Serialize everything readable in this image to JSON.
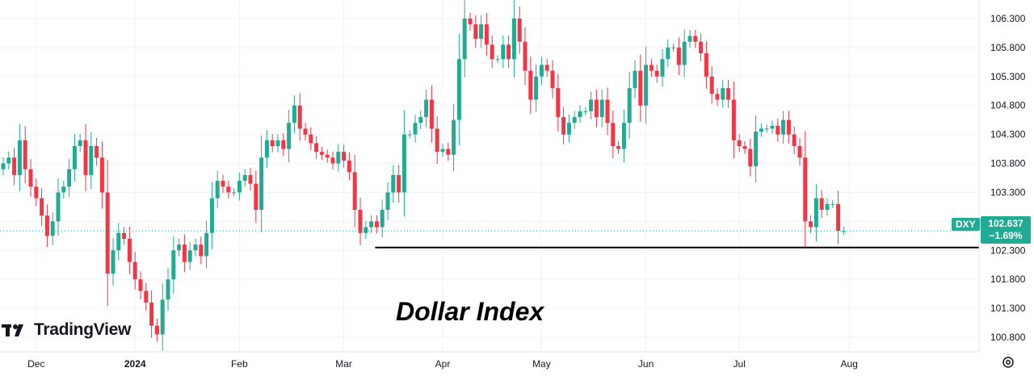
{
  "annotation": "Dollar Index",
  "brand": "TradingView",
  "last_price": {
    "symbol": "DXY",
    "value": "102.637",
    "change": "−1.69%",
    "value_num": 102.637,
    "color": "#22ab94"
  },
  "support_level": 102.35,
  "colors": {
    "up": "#22ab94",
    "down": "#f23645",
    "grid": "#f0f3fa",
    "axis_text": "#131722"
  },
  "chart_data": {
    "type": "candlestick",
    "title": "",
    "ylim": [
      100.55,
      106.62
    ],
    "y_ticks": [
      100.8,
      101.3,
      101.8,
      102.3,
      102.8,
      103.3,
      103.8,
      104.3,
      104.8,
      105.3,
      105.8,
      106.3
    ],
    "y_tick_labels": [
      "100.800",
      "101.300",
      "101.800",
      "102.300",
      "102.800",
      "103.300",
      "103.800",
      "104.300",
      "104.800",
      "105.300",
      "105.800",
      "106.300"
    ],
    "x_labels": [
      "Dec",
      "2024",
      "Feb",
      "Mar",
      "Apr",
      "May",
      "Jun",
      "Jul",
      "Aug"
    ],
    "x_label_index": [
      6,
      24,
      43,
      62,
      80,
      98,
      117,
      134,
      154
    ],
    "close": [
      103.8,
      103.9,
      103.6,
      104.2,
      103.7,
      103.4,
      103.2,
      102.9,
      102.55,
      102.8,
      103.3,
      103.4,
      103.7,
      104.1,
      104.2,
      103.6,
      104.1,
      103.9,
      103.3,
      101.9,
      102.3,
      102.6,
      102.5,
      102.1,
      101.8,
      101.6,
      101.4,
      101.0,
      100.85,
      101.45,
      101.8,
      102.3,
      102.4,
      102.1,
      102.3,
      102.4,
      102.2,
      102.6,
      103.2,
      103.5,
      103.4,
      103.3,
      103.3,
      103.5,
      103.6,
      103.45,
      103.0,
      103.9,
      104.2,
      104.1,
      104.2,
      104.05,
      104.5,
      104.8,
      104.4,
      104.3,
      104.15,
      104.0,
      103.95,
      103.9,
      103.8,
      104.0,
      103.85,
      103.65,
      103.0,
      102.6,
      102.7,
      102.8,
      102.7,
      103.0,
      103.3,
      103.6,
      103.3,
      104.3,
      104.3,
      104.5,
      104.6,
      104.9,
      104.4,
      104.0,
      104.05,
      103.95,
      104.55,
      105.6,
      106.3,
      106.2,
      105.95,
      106.2,
      105.85,
      105.6,
      105.6,
      105.85,
      105.6,
      106.3,
      105.9,
      105.4,
      104.9,
      105.3,
      105.5,
      105.4,
      105.1,
      104.6,
      104.3,
      104.5,
      104.6,
      104.7,
      104.7,
      104.9,
      104.6,
      104.9,
      104.5,
      104.1,
      104.05,
      104.5,
      105.1,
      105.4,
      104.8,
      105.5,
      105.4,
      105.3,
      105.6,
      105.8,
      105.8,
      105.5,
      105.9,
      106.0,
      105.9,
      105.7,
      105.3,
      105.0,
      104.9,
      105.1,
      104.9,
      104.2,
      104.1,
      104.05,
      103.75,
      104.35,
      104.4,
      104.4,
      104.45,
      104.3,
      104.55,
      104.3,
      104.1,
      103.9,
      102.8,
      102.7,
      103.2,
      103.0,
      103.1,
      103.1,
      102.637,
      102.637
    ],
    "open": [
      103.7,
      103.8,
      103.9,
      103.6,
      104.2,
      103.7,
      103.4,
      103.2,
      102.9,
      102.55,
      102.8,
      103.3,
      103.4,
      103.7,
      104.1,
      104.2,
      103.6,
      104.1,
      103.9,
      103.3,
      101.9,
      102.3,
      102.6,
      102.5,
      102.1,
      101.8,
      101.6,
      101.4,
      101.0,
      100.85,
      101.45,
      101.8,
      102.3,
      102.4,
      102.1,
      102.3,
      102.4,
      102.2,
      102.6,
      103.2,
      103.5,
      103.4,
      103.3,
      103.3,
      103.5,
      103.6,
      103.45,
      103.0,
      103.9,
      104.2,
      104.1,
      104.2,
      104.05,
      104.5,
      104.8,
      104.4,
      104.3,
      104.15,
      104.0,
      103.95,
      103.9,
      103.8,
      104.0,
      103.85,
      103.65,
      103.0,
      102.6,
      102.7,
      102.8,
      102.7,
      103.0,
      103.3,
      103.6,
      103.3,
      104.3,
      104.3,
      104.5,
      104.6,
      104.9,
      104.4,
      104.0,
      104.05,
      103.95,
      104.55,
      105.6,
      106.3,
      106.2,
      105.95,
      106.2,
      105.85,
      105.6,
      105.6,
      105.85,
      105.6,
      106.3,
      105.9,
      105.4,
      104.9,
      105.3,
      105.5,
      105.4,
      105.1,
      104.6,
      104.3,
      104.5,
      104.6,
      104.7,
      104.7,
      104.9,
      104.6,
      104.9,
      104.5,
      104.1,
      104.05,
      104.5,
      105.1,
      105.4,
      104.8,
      105.5,
      105.4,
      105.3,
      105.6,
      105.8,
      105.8,
      105.5,
      105.9,
      106.0,
      105.9,
      105.7,
      105.3,
      105.0,
      104.9,
      105.1,
      104.9,
      104.2,
      104.1,
      104.05,
      103.75,
      104.35,
      104.4,
      104.4,
      104.45,
      104.3,
      104.55,
      104.3,
      104.1,
      103.9,
      102.8,
      102.7,
      103.2,
      103.0,
      103.1,
      103.1,
      102.637
    ]
  }
}
